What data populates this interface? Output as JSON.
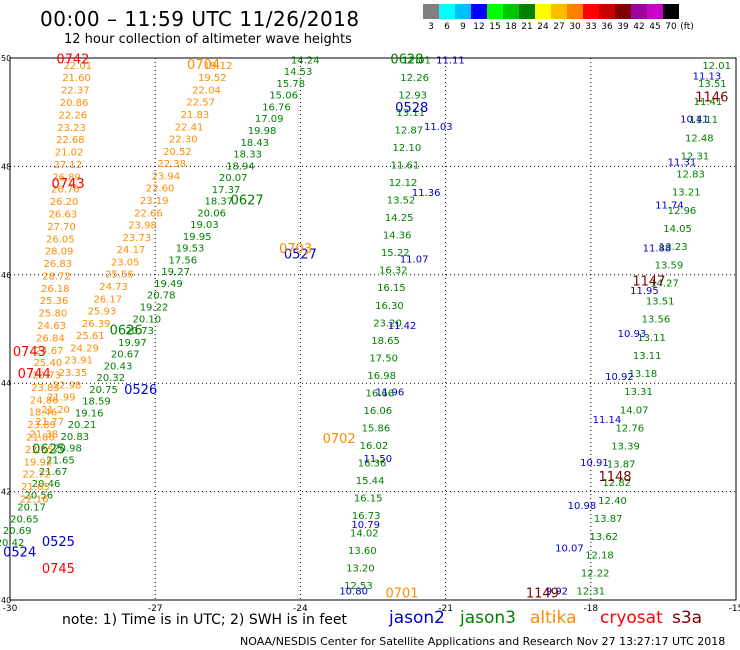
{
  "title": "00:00 – 11:59 UTC 11/26/2018",
  "subtitle": "12 hour collection of altimeter wave heights",
  "legend": {
    "labels": [
      "3",
      "6",
      "9",
      "12",
      "15",
      "18",
      "21",
      "24",
      "27",
      "30",
      "33",
      "36",
      "39",
      "42",
      "45",
      "70",
      "(ft)"
    ],
    "colors": [
      "#808080",
      "#00ffff",
      "#00bfff",
      "#0000ff",
      "#00ff00",
      "#00c800",
      "#008000",
      "#ffff00",
      "#ffbf00",
      "#ff8000",
      "#ff0000",
      "#c80000",
      "#800000",
      "#a000a0",
      "#c800c8",
      "#000000"
    ]
  },
  "sat_colors": {
    "jason2": "#0000c8",
    "jason3": "#008000",
    "altika": "#ff8c00",
    "cryosat": "#ff0000",
    "s3a": "#800000"
  },
  "note": "note: 1) Time is in UTC; 2) SWH is in feet",
  "sat_legend": [
    {
      "name": "jason2",
      "color": "#0000c8"
    },
    {
      "name": "jason3",
      "color": "#008000"
    },
    {
      "name": "altika",
      "color": "#ff8c00"
    },
    {
      "name": "cryosat",
      "color": "#ff0000"
    },
    {
      "name": "s3a",
      "color": "#800000"
    }
  ],
  "footer": "NOAA/NESDIS Center for Satellite Applications and Research    Nov 27 13:27:17 UTC 2018",
  "chart_data": {
    "type": "scatter",
    "title": "00:00 – 11:59 UTC 11/26/2018",
    "subtitle": "12 hour collection of altimeter wave heights",
    "xlim": [
      -30,
      -15
    ],
    "ylim": [
      40,
      50
    ],
    "x_ticks": [
      "-30",
      "-27",
      "-24",
      "-21",
      "-18",
      "-15"
    ],
    "y_ticks": [
      "40",
      "42",
      "44",
      "46",
      "48",
      "50"
    ],
    "grid": "dotted",
    "time_labels": [
      {
        "text": "0742",
        "lon": -28.7,
        "lat": 49.9,
        "sat": "cryosat"
      },
      {
        "text": "0704",
        "lon": -26.0,
        "lat": 49.8,
        "sat": "altika"
      },
      {
        "text": "0628",
        "lon": -21.8,
        "lat": 49.9,
        "sat": "jason3"
      },
      {
        "text": "0528",
        "lon": -21.7,
        "lat": 49.0,
        "sat": "jason2"
      },
      {
        "text": "1146",
        "lon": -15.5,
        "lat": 49.2,
        "sat": "s3a"
      },
      {
        "text": "0743",
        "lon": -28.8,
        "lat": 47.6,
        "sat": "cryosat"
      },
      {
        "text": "0627",
        "lon": -25.1,
        "lat": 47.3,
        "sat": "jason3"
      },
      {
        "text": "0527",
        "lon": -24.0,
        "lat": 46.3,
        "sat": "jason2"
      },
      {
        "text": "0703",
        "lon": -24.1,
        "lat": 46.4,
        "sat": "altika"
      },
      {
        "text": "1147",
        "lon": -16.8,
        "lat": 45.8,
        "sat": "s3a"
      },
      {
        "text": "0626",
        "lon": -27.6,
        "lat": 44.9,
        "sat": "jason3"
      },
      {
        "text": "0743",
        "lon": -29.6,
        "lat": 44.5,
        "sat": "cryosat"
      },
      {
        "text": "0744",
        "lon": -29.5,
        "lat": 44.1,
        "sat": "cryosat"
      },
      {
        "text": "0526",
        "lon": -27.3,
        "lat": 43.8,
        "sat": "jason2"
      },
      {
        "text": "0702",
        "lon": -23.2,
        "lat": 42.9,
        "sat": "altika"
      },
      {
        "text": "0625",
        "lon": -29.2,
        "lat": 42.7,
        "sat": "jason3"
      },
      {
        "text": "1148",
        "lon": -17.5,
        "lat": 42.2,
        "sat": "s3a"
      },
      {
        "text": "0525",
        "lon": -29.0,
        "lat": 41.0,
        "sat": "jason2"
      },
      {
        "text": "0524",
        "lon": -29.8,
        "lat": 40.8,
        "sat": "jason2"
      },
      {
        "text": "0745",
        "lon": -29.0,
        "lat": 40.5,
        "sat": "cryosat"
      },
      {
        "text": "0701",
        "lon": -21.9,
        "lat": 40.05,
        "sat": "altika"
      },
      {
        "text": "1149",
        "lon": -19.0,
        "lat": 40.05,
        "sat": "s3a"
      }
    ],
    "tracks": [
      {
        "sat": "altika",
        "lon_top": -25.7,
        "lat_top": 49.8,
        "lon_bot": -29.3,
        "lat_bot": 43.0,
        "values": [
          "19.12",
          "19.52",
          "22.04",
          "22.57",
          "21.83",
          "22.41",
          "22.30",
          "20.52",
          "22.38",
          "23.94",
          "22.60",
          "23.19",
          "22.66",
          "23.98",
          "23.73",
          "24.17",
          "23.05",
          "25.56",
          "24.73",
          "26.17",
          "25.93",
          "26.39",
          "25.61",
          "24.29",
          "23.91",
          "23.35",
          "22.98",
          "21.99",
          "21.20",
          "21.77",
          "21.38"
        ]
      },
      {
        "sat": "jason3",
        "lon_top": -23.9,
        "lat_top": 49.9,
        "lon_bot": -30.0,
        "lat_bot": 41.0,
        "values": [
          "14.24",
          "14.53",
          "15.78",
          "15.06",
          "16.76",
          "17.09",
          "19.98",
          "18.43",
          "18.33",
          "18.94",
          "20.07",
          "17.37",
          "18.37",
          "20.06",
          "19.03",
          "19.95",
          "19.53",
          "17.56",
          "19.27",
          "19.49",
          "20.78",
          "19.22",
          "20.10",
          "20.73",
          "19.97",
          "20.67",
          "20.43",
          "20.32",
          "20.75",
          "18.59",
          "19.16",
          "20.21",
          "20.83",
          "20.98",
          "21.65",
          "21.67",
          "20.46",
          "20.56",
          "20.17",
          "20.65",
          "20.69",
          "20.42"
        ]
      },
      {
        "sat": "jason3",
        "lon_top": -21.6,
        "lat_top": 49.9,
        "lon_bot": -22.8,
        "lat_bot": 40.2,
        "values": [
          "12.01",
          "12.26",
          "12.93",
          "13.11",
          "12.87",
          "12.10",
          "11.61",
          "12.12",
          "13.52",
          "14.25",
          "14.36",
          "15.22",
          "16.32",
          "16.15",
          "16.30",
          "23.20",
          "18.65",
          "17.50",
          "16.98",
          "16.66",
          "16.06",
          "15.86",
          "16.02",
          "16.36",
          "15.44",
          "16.15",
          "16.73",
          "14.02",
          "13.60",
          "13.20",
          "12.53"
        ]
      },
      {
        "sat": "jason2",
        "lon_top": -20.9,
        "lat_top": 49.9,
        "lon_bot": -22.9,
        "lat_bot": 40.1,
        "values": [
          "11.11",
          "11.03",
          "11.36",
          "11.07",
          "11.42",
          "11.96",
          "11.50",
          "10.79",
          "10.80"
        ]
      },
      {
        "sat": "jason3",
        "lon_top": -15.4,
        "lat_top": 49.8,
        "lon_bot": -18.0,
        "lat_bot": 40.1,
        "values": [
          "12.01",
          "13.51",
          "11.41",
          "11.11",
          "12.48",
          "12.31",
          "12.83",
          "13.21",
          "12.96",
          "14.05",
          "13.23",
          "13.59",
          "14.27",
          "13.51",
          "13.56",
          "13.11",
          "13.11",
          "13.18",
          "13.31",
          "14.07",
          "12.76",
          "13.39",
          "13.87",
          "12.82",
          "12.40",
          "13.87",
          "13.62",
          "12.18",
          "12.22",
          "12.31"
        ]
      },
      {
        "sat": "jason2",
        "lon_top": -15.6,
        "lat_top": 49.6,
        "lon_bot": -18.7,
        "lat_bot": 40.1,
        "values": [
          "11.13",
          "10.41",
          "11.31",
          "11.74",
          "11.88",
          "11.95",
          "10.93",
          "10.92",
          "11.14",
          "10.91",
          "10.98",
          "10.07",
          "9.92"
        ]
      },
      {
        "sat": "altika",
        "lon_top": -28.6,
        "lat_top": 49.8,
        "lon_bot": -29.5,
        "lat_bot": 41.8,
        "values": [
          "22.01",
          "21.60",
          "22.37",
          "20.86",
          "22.26",
          "23.23",
          "22.68",
          "21.02",
          "27.12",
          "26.89",
          "26.76",
          "26.20",
          "26.63",
          "27.70",
          "26.05",
          "28.09",
          "26.83",
          "28.72",
          "26.18",
          "25.36",
          "25.80",
          "24.63",
          "26.84",
          "24.67",
          "25.40",
          "20.73",
          "23.83",
          "24.86",
          "18.46",
          "23.89",
          "21.86",
          "23.55",
          "19.92",
          "22.72",
          "21.65",
          "22.16"
        ]
      }
    ]
  }
}
